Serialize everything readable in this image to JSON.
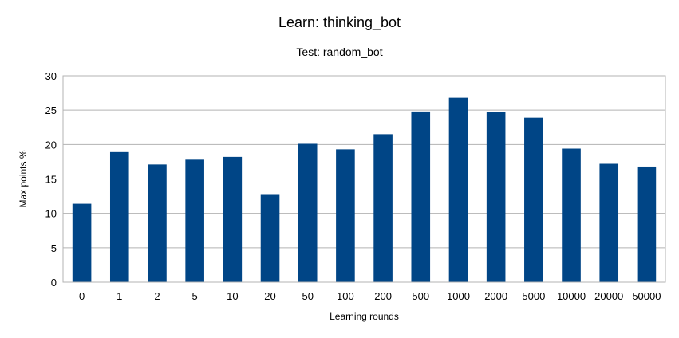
{
  "chart_data": {
    "type": "bar",
    "title": "Learn: thinking_bot",
    "subtitle": "Test: random_bot",
    "xlabel": "Learning rounds",
    "ylabel": "Max points %",
    "ylim": [
      0,
      30
    ],
    "yticks": [
      0,
      5,
      10,
      15,
      20,
      25,
      30
    ],
    "grid": true,
    "legend": "none",
    "bar_color": "#004586",
    "categories": [
      "0",
      "1",
      "2",
      "5",
      "10",
      "20",
      "50",
      "100",
      "200",
      "500",
      "1000",
      "2000",
      "5000",
      "10000",
      "20000",
      "50000"
    ],
    "values": [
      11.4,
      18.9,
      17.1,
      17.8,
      18.2,
      12.8,
      20.1,
      19.3,
      21.5,
      24.8,
      26.8,
      24.7,
      23.9,
      19.4,
      17.2,
      16.8
    ]
  }
}
